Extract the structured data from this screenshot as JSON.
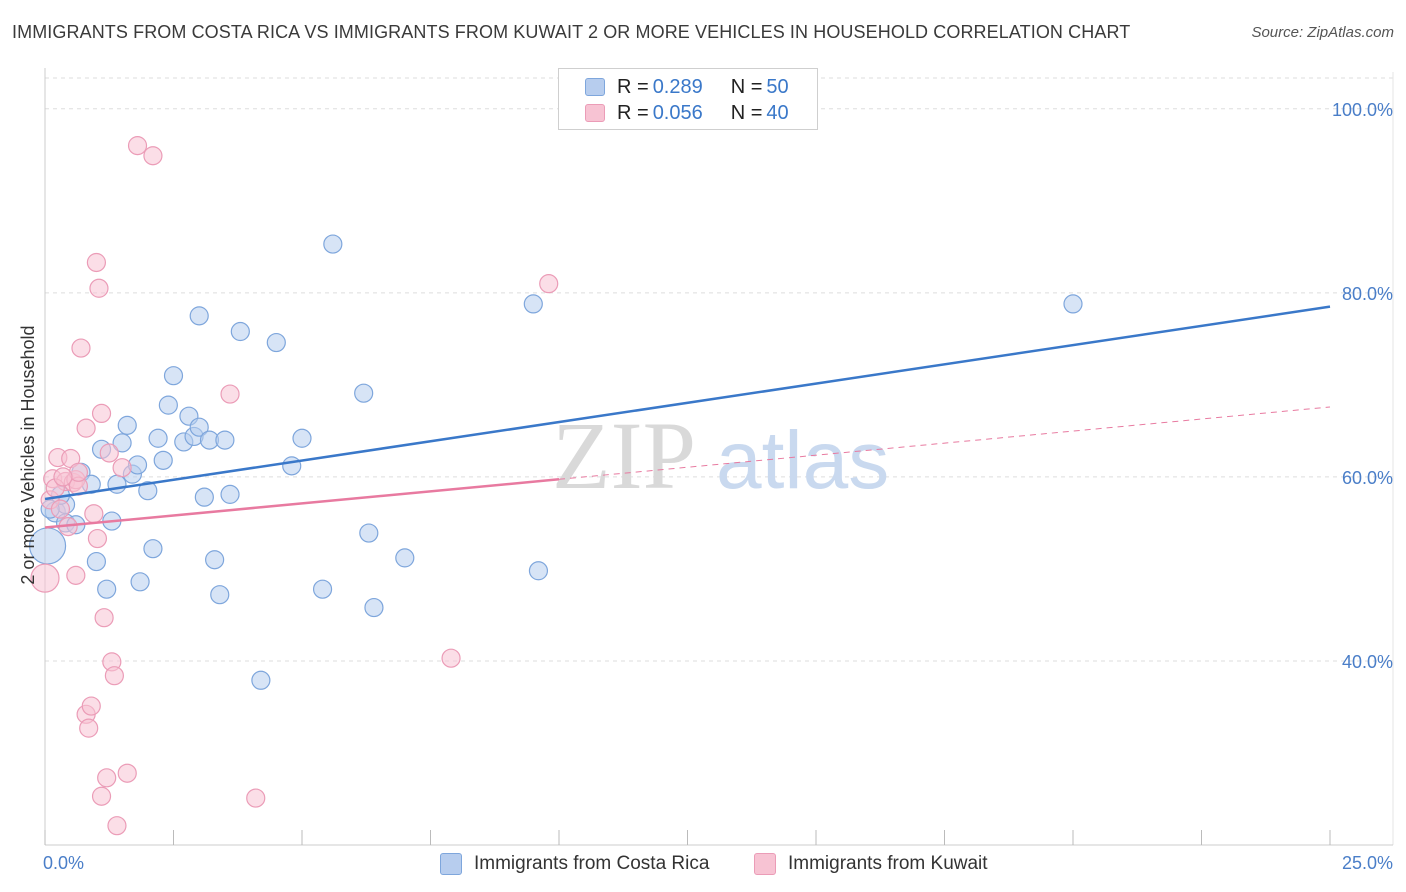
{
  "header": {
    "title": "IMMIGRANTS FROM COSTA RICA VS IMMIGRANTS FROM KUWAIT 2 OR MORE VEHICLES IN HOUSEHOLD CORRELATION CHART",
    "source": "Source: ZipAtlas.com"
  },
  "legend": {
    "row1": {
      "r_label": "R = ",
      "r_value": "0.289",
      "n_label": "N = ",
      "n_value": "50"
    },
    "row2": {
      "r_label": "R = ",
      "r_value": "0.056",
      "n_label": "N = ",
      "n_value": "40"
    }
  },
  "watermark": {
    "zip": "ZIP",
    "atlas": "atlas"
  },
  "colors": {
    "blue": "#3a78c9",
    "blue_fill": "#b7cdee",
    "pink": "#e87aa0",
    "pink_fill": "#f7c3d3",
    "grid": "#dddddd",
    "tick_text": "#4a7ec8"
  },
  "chart_data": {
    "type": "scatter",
    "title": "IMMIGRANTS FROM COSTA RICA VS IMMIGRANTS FROM KUWAIT 2 OR MORE VEHICLES IN HOUSEHOLD CORRELATION CHART",
    "xlabel": "",
    "ylabel": "2 or more Vehicles in Household",
    "xlim": [
      0,
      25
    ],
    "ylim": [
      20,
      104
    ],
    "x_tick_labels": [
      "0.0%",
      "25.0%"
    ],
    "y_ticks": [
      40,
      60,
      80,
      100
    ],
    "y_tick_labels": [
      "40.0%",
      "60.0%",
      "80.0%",
      "100.0%"
    ],
    "series": [
      {
        "name": "Immigrants from Costa Rica",
        "color": "#3a78c9",
        "r": "0.289",
        "n": "50",
        "trend": {
          "x0": 0,
          "y0": 57.6,
          "x1": 25,
          "y1": 78.5,
          "dashed_from_x": null
        },
        "points": [
          [
            0.05,
            52.5,
            18
          ],
          [
            0.2,
            56.2,
            10
          ],
          [
            0.4,
            57.0,
            9
          ],
          [
            0.4,
            55.0,
            9
          ],
          [
            0.6,
            54.8,
            9
          ],
          [
            0.7,
            60.5,
            9
          ],
          [
            0.9,
            59.2,
            9
          ],
          [
            1.0,
            50.8,
            9
          ],
          [
            1.1,
            63.0,
            9
          ],
          [
            1.2,
            47.8,
            9
          ],
          [
            1.3,
            55.2,
            9
          ],
          [
            1.4,
            59.2,
            9
          ],
          [
            1.5,
            63.7,
            9
          ],
          [
            1.6,
            65.6,
            9
          ],
          [
            1.7,
            60.3,
            9
          ],
          [
            1.8,
            61.3,
            9
          ],
          [
            1.85,
            48.6,
            9
          ],
          [
            2.0,
            58.5,
            9
          ],
          [
            2.1,
            52.2,
            9
          ],
          [
            2.2,
            64.2,
            9
          ],
          [
            2.3,
            61.8,
            9
          ],
          [
            2.4,
            67.8,
            9
          ],
          [
            2.5,
            71.0,
            9
          ],
          [
            2.7,
            63.8,
            9
          ],
          [
            2.8,
            66.6,
            9
          ],
          [
            2.9,
            64.4,
            9
          ],
          [
            3.0,
            65.4,
            9
          ],
          [
            3.0,
            77.5,
            9
          ],
          [
            3.1,
            57.8,
            9
          ],
          [
            3.2,
            64.0,
            9
          ],
          [
            3.3,
            51.0,
            9
          ],
          [
            3.4,
            47.2,
            9
          ],
          [
            3.5,
            64.0,
            9
          ],
          [
            3.6,
            58.1,
            9
          ],
          [
            3.8,
            75.8,
            9
          ],
          [
            4.2,
            37.9,
            9
          ],
          [
            4.5,
            74.6,
            9
          ],
          [
            4.8,
            61.2,
            9
          ],
          [
            5.0,
            64.2,
            9
          ],
          [
            5.4,
            47.8,
            9
          ],
          [
            5.6,
            85.3,
            9
          ],
          [
            6.2,
            69.1,
            9
          ],
          [
            6.3,
            53.9,
            9
          ],
          [
            6.4,
            45.8,
            9
          ],
          [
            7.0,
            51.2,
            9
          ],
          [
            9.5,
            78.8,
            9
          ],
          [
            9.6,
            49.8,
            9
          ],
          [
            20.0,
            78.8,
            9
          ],
          [
            0.1,
            56.5,
            9
          ],
          [
            0.3,
            58.0,
            9
          ]
        ]
      },
      {
        "name": "Immigrants from Kuwait",
        "color": "#e87aa0",
        "r": "0.056",
        "n": "40",
        "trend": {
          "x0": 0,
          "y0": 54.5,
          "x1": 25,
          "y1": 67.6,
          "dashed_from_x": 10
        },
        "points": [
          [
            0.0,
            49.0,
            14
          ],
          [
            0.1,
            57.5,
            9
          ],
          [
            0.15,
            59.8,
            9
          ],
          [
            0.25,
            62.1,
            9
          ],
          [
            0.3,
            56.5,
            9
          ],
          [
            0.4,
            59.5,
            9
          ],
          [
            0.45,
            54.6,
            9
          ],
          [
            0.5,
            62.0,
            9
          ],
          [
            0.55,
            59.4,
            9
          ],
          [
            0.6,
            59.7,
            9
          ],
          [
            0.65,
            59.0,
            9
          ],
          [
            0.6,
            49.3,
            9
          ],
          [
            0.65,
            60.5,
            9
          ],
          [
            0.7,
            74.0,
            9
          ],
          [
            0.8,
            34.2,
            9
          ],
          [
            0.85,
            32.7,
            9
          ],
          [
            0.8,
            65.3,
            9
          ],
          [
            0.9,
            35.1,
            9
          ],
          [
            0.95,
            56.0,
            9
          ],
          [
            1.0,
            83.3,
            9
          ],
          [
            1.02,
            53.3,
            9
          ],
          [
            1.05,
            80.5,
            9
          ],
          [
            1.1,
            25.3,
            9
          ],
          [
            1.1,
            66.9,
            9
          ],
          [
            1.15,
            44.7,
            9
          ],
          [
            1.2,
            27.3,
            9
          ],
          [
            1.25,
            62.6,
            9
          ],
          [
            1.3,
            39.9,
            9
          ],
          [
            1.35,
            38.4,
            9
          ],
          [
            1.4,
            22.1,
            9
          ],
          [
            1.5,
            61.0,
            9
          ],
          [
            1.6,
            27.8,
            9
          ],
          [
            1.8,
            96.0,
            9
          ],
          [
            2.1,
            94.9,
            9
          ],
          [
            3.6,
            69.0,
            9
          ],
          [
            4.1,
            25.1,
            9
          ],
          [
            7.9,
            40.3,
            9
          ],
          [
            9.8,
            81.0,
            9
          ],
          [
            0.2,
            58.8,
            9
          ],
          [
            0.35,
            60.0,
            9
          ]
        ]
      }
    ],
    "legend_position": "top-center"
  }
}
